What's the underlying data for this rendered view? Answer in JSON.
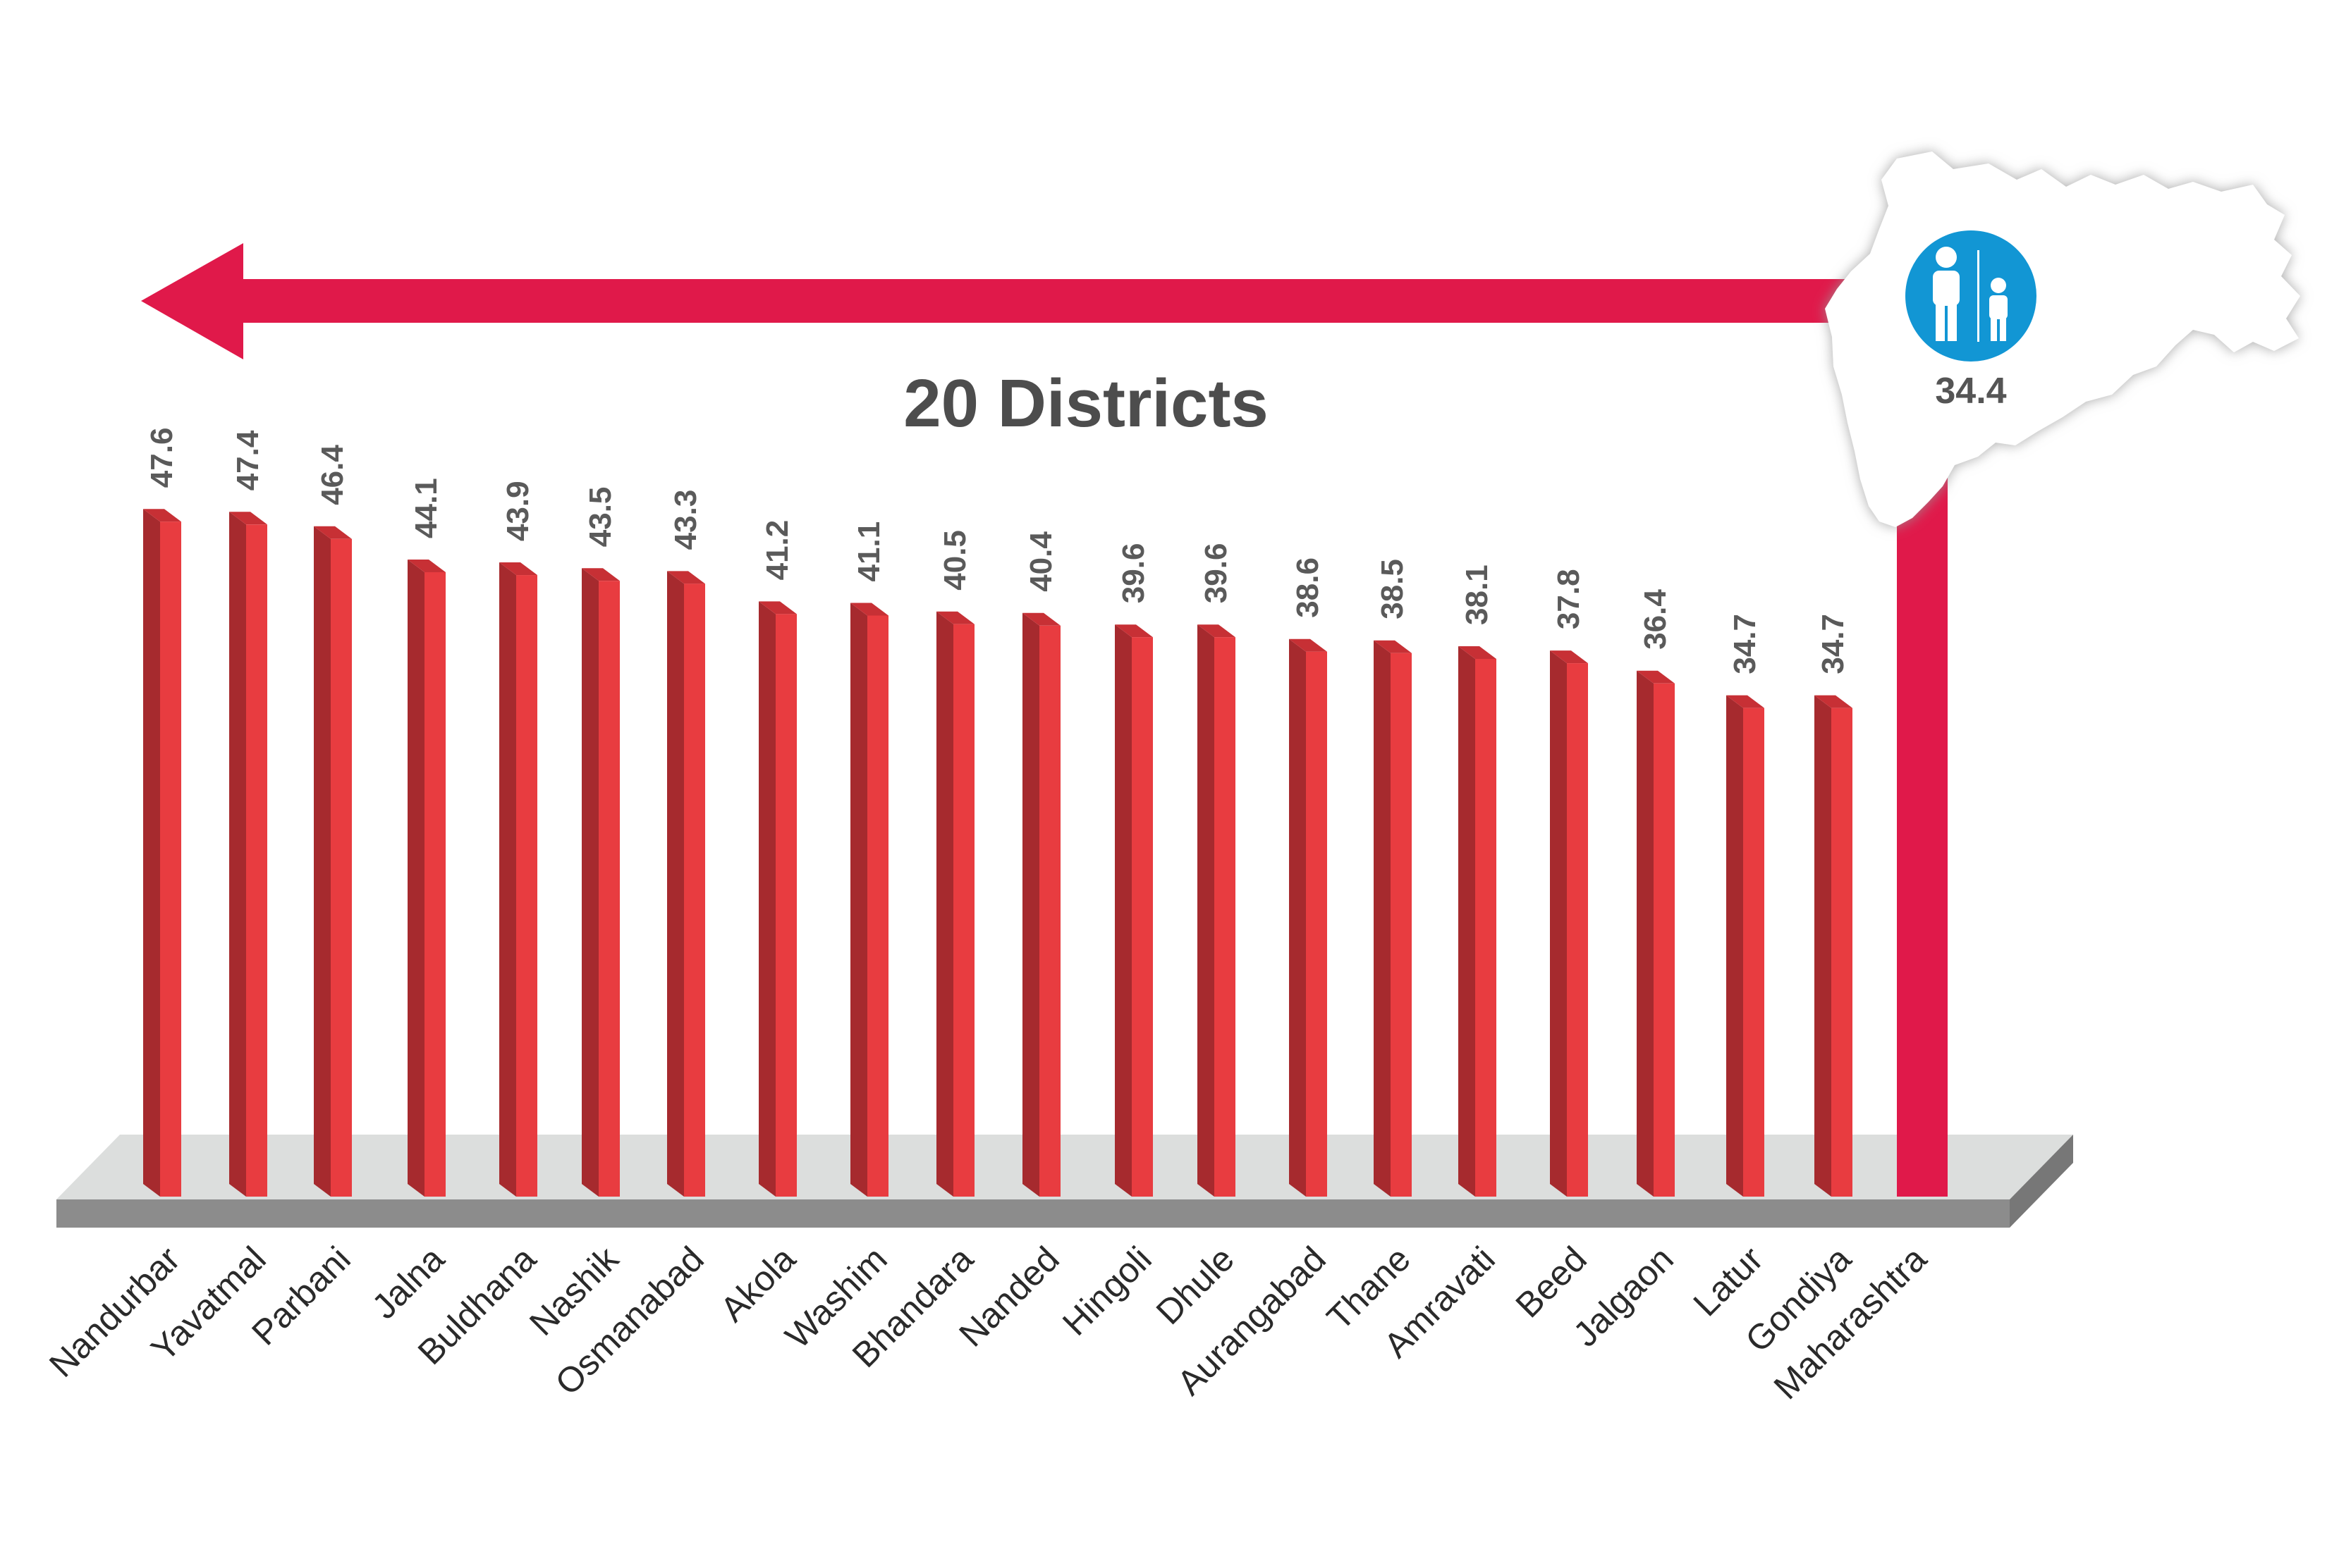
{
  "title": "20 Districts",
  "colors": {
    "bar_front": "#e83c40",
    "bar_side": "#a62a2e",
    "bar_top": "#c73035",
    "arrow": "#e0194a",
    "platform_top": "#dcdedd",
    "platform_front": "#8c8c8c",
    "icon_circle": "#1296d4"
  },
  "icons": {
    "map": "maharashtra-map-icon",
    "people": "adult-child-icon"
  },
  "chart_data": {
    "type": "bar",
    "title": "20 Districts",
    "categories": [
      "Nandurbar",
      "Yavatmal",
      "Parbani",
      "Jalna",
      "Buldhana",
      "Nashik",
      "Osmanabad",
      "Akola",
      "Washim",
      "Bhandara",
      "Nanded",
      "Hingoli",
      "Dhule",
      "Aurangabad",
      "Thane",
      "Amravati",
      "Beed",
      "Jalgaon",
      "Latur",
      "Gondiya"
    ],
    "values": [
      47.6,
      47.4,
      46.4,
      44.1,
      43.9,
      43.5,
      43.3,
      41.2,
      41.1,
      40.5,
      40.4,
      39.6,
      39.6,
      38.6,
      38.5,
      38.1,
      37.8,
      36.4,
      34.7,
      34.7
    ],
    "value_labels": [
      "47.6",
      "47.4",
      "46.4",
      "44.1",
      "43.9",
      "43.5",
      "43.3",
      "41.2",
      "41.1",
      "40.5",
      "40.4",
      "39.6",
      "39.6",
      "38.6",
      "38.5",
      "38.1",
      "37.8",
      "36.4",
      "34.7",
      "34.7"
    ],
    "reference": {
      "name": "Maharashtra",
      "value": 34.4,
      "label": "34.4"
    },
    "xlabel": "",
    "ylabel": "",
    "grid": false,
    "legend": "none"
  }
}
